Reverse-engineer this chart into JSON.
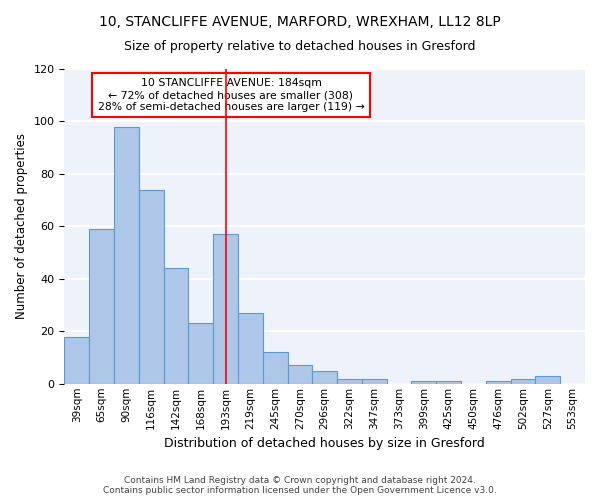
{
  "title1": "10, STANCLIFFE AVENUE, MARFORD, WREXHAM, LL12 8LP",
  "title2": "Size of property relative to detached houses in Gresford",
  "xlabel": "Distribution of detached houses by size in Gresford",
  "ylabel": "Number of detached properties",
  "categories": [
    "39sqm",
    "65sqm",
    "90sqm",
    "116sqm",
    "142sqm",
    "168sqm",
    "193sqm",
    "219sqm",
    "245sqm",
    "270sqm",
    "296sqm",
    "322sqm",
    "347sqm",
    "373sqm",
    "399sqm",
    "425sqm",
    "450sqm",
    "476sqm",
    "502sqm",
    "527sqm",
    "553sqm"
  ],
  "values": [
    18,
    59,
    98,
    74,
    44,
    23,
    57,
    27,
    12,
    7,
    5,
    2,
    2,
    0,
    1,
    1,
    0,
    1,
    2,
    3,
    0
  ],
  "bar_color": "#aec6e8",
  "bar_edge_color": "#5b9bd5",
  "red_line_x": 6,
  "annotation_text": "10 STANCLIFFE AVENUE: 184sqm\n← 72% of detached houses are smaller (308)\n28% of semi-detached houses are larger (119) →",
  "annotation_box_color": "white",
  "annotation_box_edge_color": "red",
  "ylim": [
    0,
    120
  ],
  "yticks": [
    0,
    20,
    40,
    60,
    80,
    100,
    120
  ],
  "background_color": "#eef3fb",
  "grid_color": "white",
  "footer1": "Contains HM Land Registry data © Crown copyright and database right 2024.",
  "footer2": "Contains public sector information licensed under the Open Government Licence v3.0."
}
